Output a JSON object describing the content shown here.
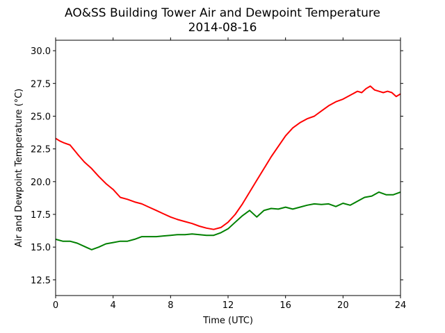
{
  "chart_data": {
    "type": "line",
    "title": "AO&SS Building Tower Air and Dewpoint Temperature",
    "subtitle": "2014-08-16",
    "xlabel": "Time (UTC)",
    "ylabel": "Air and Dewpoint Temperature (°C)",
    "xlim": [
      0,
      24
    ],
    "ylim": [
      11.3,
      30.8
    ],
    "xticks": [
      0,
      4,
      8,
      12,
      16,
      20,
      24
    ],
    "yticks": [
      12.5,
      15.0,
      17.5,
      20.0,
      22.5,
      25.0,
      27.5,
      30.0
    ],
    "ytick_labels": [
      "12.5",
      "15.0",
      "17.5",
      "20.0",
      "22.5",
      "25.0",
      "27.5",
      "30.0"
    ],
    "grid": false,
    "legend": "none",
    "series": [
      {
        "color": "#ff0000",
        "x": [
          0,
          0.3,
          0.6,
          1.0,
          1.3,
          1.6,
          2.0,
          2.5,
          3.0,
          3.5,
          4.0,
          4.5,
          5.0,
          5.5,
          6.0,
          6.5,
          7.0,
          7.5,
          8.0,
          8.5,
          9.0,
          9.5,
          10.0,
          10.5,
          11.0,
          11.5,
          12.0,
          12.5,
          13.0,
          13.5,
          14.0,
          14.5,
          15.0,
          15.5,
          16.0,
          16.5,
          17.0,
          17.5,
          18.0,
          18.5,
          19.0,
          19.5,
          20.0,
          20.5,
          21.0,
          21.3,
          21.6,
          21.9,
          22.2,
          22.5,
          22.8,
          23.1,
          23.4,
          23.7,
          24.0
        ],
        "y": [
          23.3,
          23.1,
          22.95,
          22.8,
          22.4,
          22.0,
          21.5,
          21.0,
          20.4,
          19.85,
          19.4,
          18.8,
          18.65,
          18.45,
          18.3,
          18.05,
          17.8,
          17.55,
          17.3,
          17.1,
          16.95,
          16.8,
          16.6,
          16.45,
          16.35,
          16.5,
          16.9,
          17.5,
          18.3,
          19.2,
          20.1,
          21.0,
          21.9,
          22.7,
          23.5,
          24.1,
          24.5,
          24.8,
          25.0,
          25.4,
          25.8,
          26.1,
          26.3,
          26.6,
          26.9,
          26.8,
          27.1,
          27.3,
          27.0,
          26.9,
          26.8,
          26.9,
          26.8,
          26.5,
          26.7
        ]
      },
      {
        "color": "#008000",
        "x": [
          0,
          0.5,
          1.0,
          1.5,
          2.0,
          2.5,
          3.0,
          3.5,
          4.0,
          4.5,
          5.0,
          5.5,
          6.0,
          6.5,
          7.0,
          7.5,
          8.0,
          8.5,
          9.0,
          9.5,
          10.0,
          10.5,
          11.0,
          11.5,
          12.0,
          12.5,
          13.0,
          13.5,
          14.0,
          14.5,
          15.0,
          15.5,
          16.0,
          16.5,
          17.0,
          17.5,
          18.0,
          18.5,
          19.0,
          19.5,
          20.0,
          20.5,
          21.0,
          21.5,
          22.0,
          22.5,
          23.0,
          23.5,
          24.0
        ],
        "y": [
          15.6,
          15.45,
          15.45,
          15.3,
          15.05,
          14.8,
          15.0,
          15.25,
          15.35,
          15.45,
          15.45,
          15.6,
          15.8,
          15.8,
          15.8,
          15.85,
          15.9,
          15.95,
          15.95,
          16.0,
          15.95,
          15.9,
          15.9,
          16.1,
          16.4,
          16.9,
          17.4,
          17.8,
          17.3,
          17.8,
          17.95,
          17.9,
          18.05,
          17.9,
          18.05,
          18.2,
          18.3,
          18.25,
          18.3,
          18.1,
          18.35,
          18.2,
          18.5,
          18.8,
          18.9,
          19.2,
          19.0,
          19.0,
          19.2
        ]
      }
    ]
  }
}
